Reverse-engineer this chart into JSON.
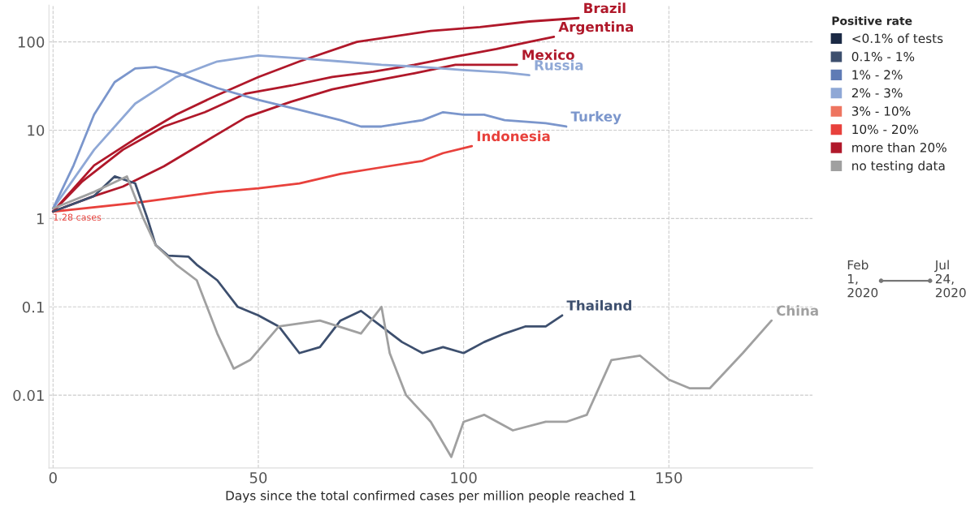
{
  "chart_data": {
    "type": "line",
    "xlabel": "Days since the total confirmed cases per million people reached 1",
    "legend_title": "Positive rate",
    "log": true,
    "grid": true,
    "legend": "right",
    "marker": "none",
    "line_style": "solid",
    "xlim": [
      -1,
      185
    ],
    "xticks": [
      0,
      50,
      100,
      150
    ],
    "ylim": [
      0.0015,
      260
    ],
    "yticks": [
      0.01,
      0.1,
      1,
      10,
      100
    ],
    "series": [
      {
        "name": "Brazil",
        "color": "#b0182a",
        "x": [
          0,
          10,
          20,
          30,
          40,
          50,
          60,
          74,
          92,
          104,
          116,
          128
        ],
        "values": [
          1.2,
          4,
          8,
          15,
          25,
          40,
          60,
          100,
          133,
          147,
          170,
          186
        ]
      },
      {
        "name": "Argentina",
        "color": "#b0182a",
        "x": [
          0,
          7,
          17,
          27,
          37,
          47,
          58,
          68,
          78,
          88,
          98,
          108,
          116,
          122
        ],
        "values": [
          1.2,
          2.6,
          6,
          11,
          16,
          26,
          32,
          40,
          46,
          55,
          68,
          83,
          100,
          114
        ]
      },
      {
        "name": "Mexico",
        "color": "#b0182a",
        "x": [
          0,
          10,
          17,
          27,
          37,
          47,
          58,
          68,
          78,
          88,
          98,
          108,
          113
        ],
        "values": [
          1.2,
          1.8,
          2.3,
          3.9,
          7.4,
          14,
          21,
          29,
          36,
          44,
          55,
          55,
          55
        ]
      },
      {
        "name": "Russia",
        "color": "#8fa8d6",
        "x": [
          0,
          10,
          20,
          30,
          40,
          50,
          60,
          70,
          80,
          90,
          100,
          110,
          116
        ],
        "values": [
          1.3,
          6,
          20,
          40,
          60,
          70,
          65,
          60,
          55,
          52,
          48,
          45,
          42
        ]
      },
      {
        "name": "Turkey",
        "color": "#7b96cc",
        "x": [
          0,
          5,
          10,
          15,
          20,
          25,
          30,
          40,
          50,
          60,
          70,
          75,
          80,
          90,
          95,
          100,
          105,
          110,
          120,
          125
        ],
        "values": [
          1.3,
          4,
          15,
          35,
          50,
          52,
          45,
          30,
          22,
          17,
          13,
          11,
          11,
          13,
          16,
          15,
          15,
          13,
          12,
          11
        ]
      },
      {
        "name": "Indonesia",
        "color": "#e8413c",
        "x": [
          0,
          20,
          40,
          50,
          60,
          70,
          80,
          90,
          95,
          102
        ],
        "values": [
          1.2,
          1.5,
          2.0,
          2.2,
          2.5,
          3.2,
          3.8,
          4.5,
          5.5,
          6.6
        ]
      },
      {
        "name": "Thailand",
        "color": "#3d4f6e",
        "x": [
          0,
          10,
          15,
          20,
          23,
          25,
          28,
          33,
          35,
          40,
          45,
          50,
          55,
          60,
          65,
          70,
          75,
          80,
          85,
          90,
          95,
          100,
          105,
          110,
          115,
          120,
          124
        ],
        "values": [
          1.2,
          1.8,
          3,
          2.5,
          1,
          0.5,
          0.38,
          0.37,
          0.3,
          0.2,
          0.1,
          0.08,
          0.06,
          0.03,
          0.035,
          0.07,
          0.09,
          0.06,
          0.04,
          0.03,
          0.035,
          0.03,
          0.04,
          0.05,
          0.06,
          0.06,
          0.08
        ]
      },
      {
        "name": "China",
        "color": "#a0a0a0",
        "x": [
          0,
          10,
          18,
          22,
          25,
          30,
          35,
          40,
          44,
          48,
          55,
          65,
          75,
          80,
          82,
          86,
          92,
          97,
          100,
          105,
          112,
          120,
          125,
          130,
          136,
          143,
          150,
          155,
          160,
          168,
          175
        ],
        "values": [
          1.3,
          2,
          3,
          1,
          0.5,
          0.3,
          0.2,
          0.05,
          0.02,
          0.025,
          0.06,
          0.07,
          0.05,
          0.1,
          0.03,
          0.01,
          0.005,
          0.002,
          0.005,
          0.006,
          0.004,
          0.005,
          0.005,
          0.006,
          0.025,
          0.028,
          0.015,
          0.012,
          0.012,
          0.03,
          0.07
        ]
      },
      {
        "name": "<0.1% of tests",
        "color": "#1b2a45"
      },
      {
        "name": "0.1% - 1%",
        "color": "#3d4f6e"
      },
      {
        "name": "1% - 2%",
        "color": "#5f7bb5"
      },
      {
        "name": "2% - 3%",
        "color": "#8fa8d6"
      },
      {
        "name": "3% - 10%",
        "color": "#ee7560"
      },
      {
        "name": "10% - 20%",
        "color": "#e8413c"
      },
      {
        "name": "more than 20%",
        "color": "#b0182a"
      },
      {
        "name": "no testing data",
        "color": "#a0a0a0"
      }
    ],
    "annotations": [
      {
        "text": "1.28 cases",
        "x": 0,
        "y": 1.28
      },
      "Feb 1, 2020",
      "Jul 24, 2020"
    ]
  }
}
